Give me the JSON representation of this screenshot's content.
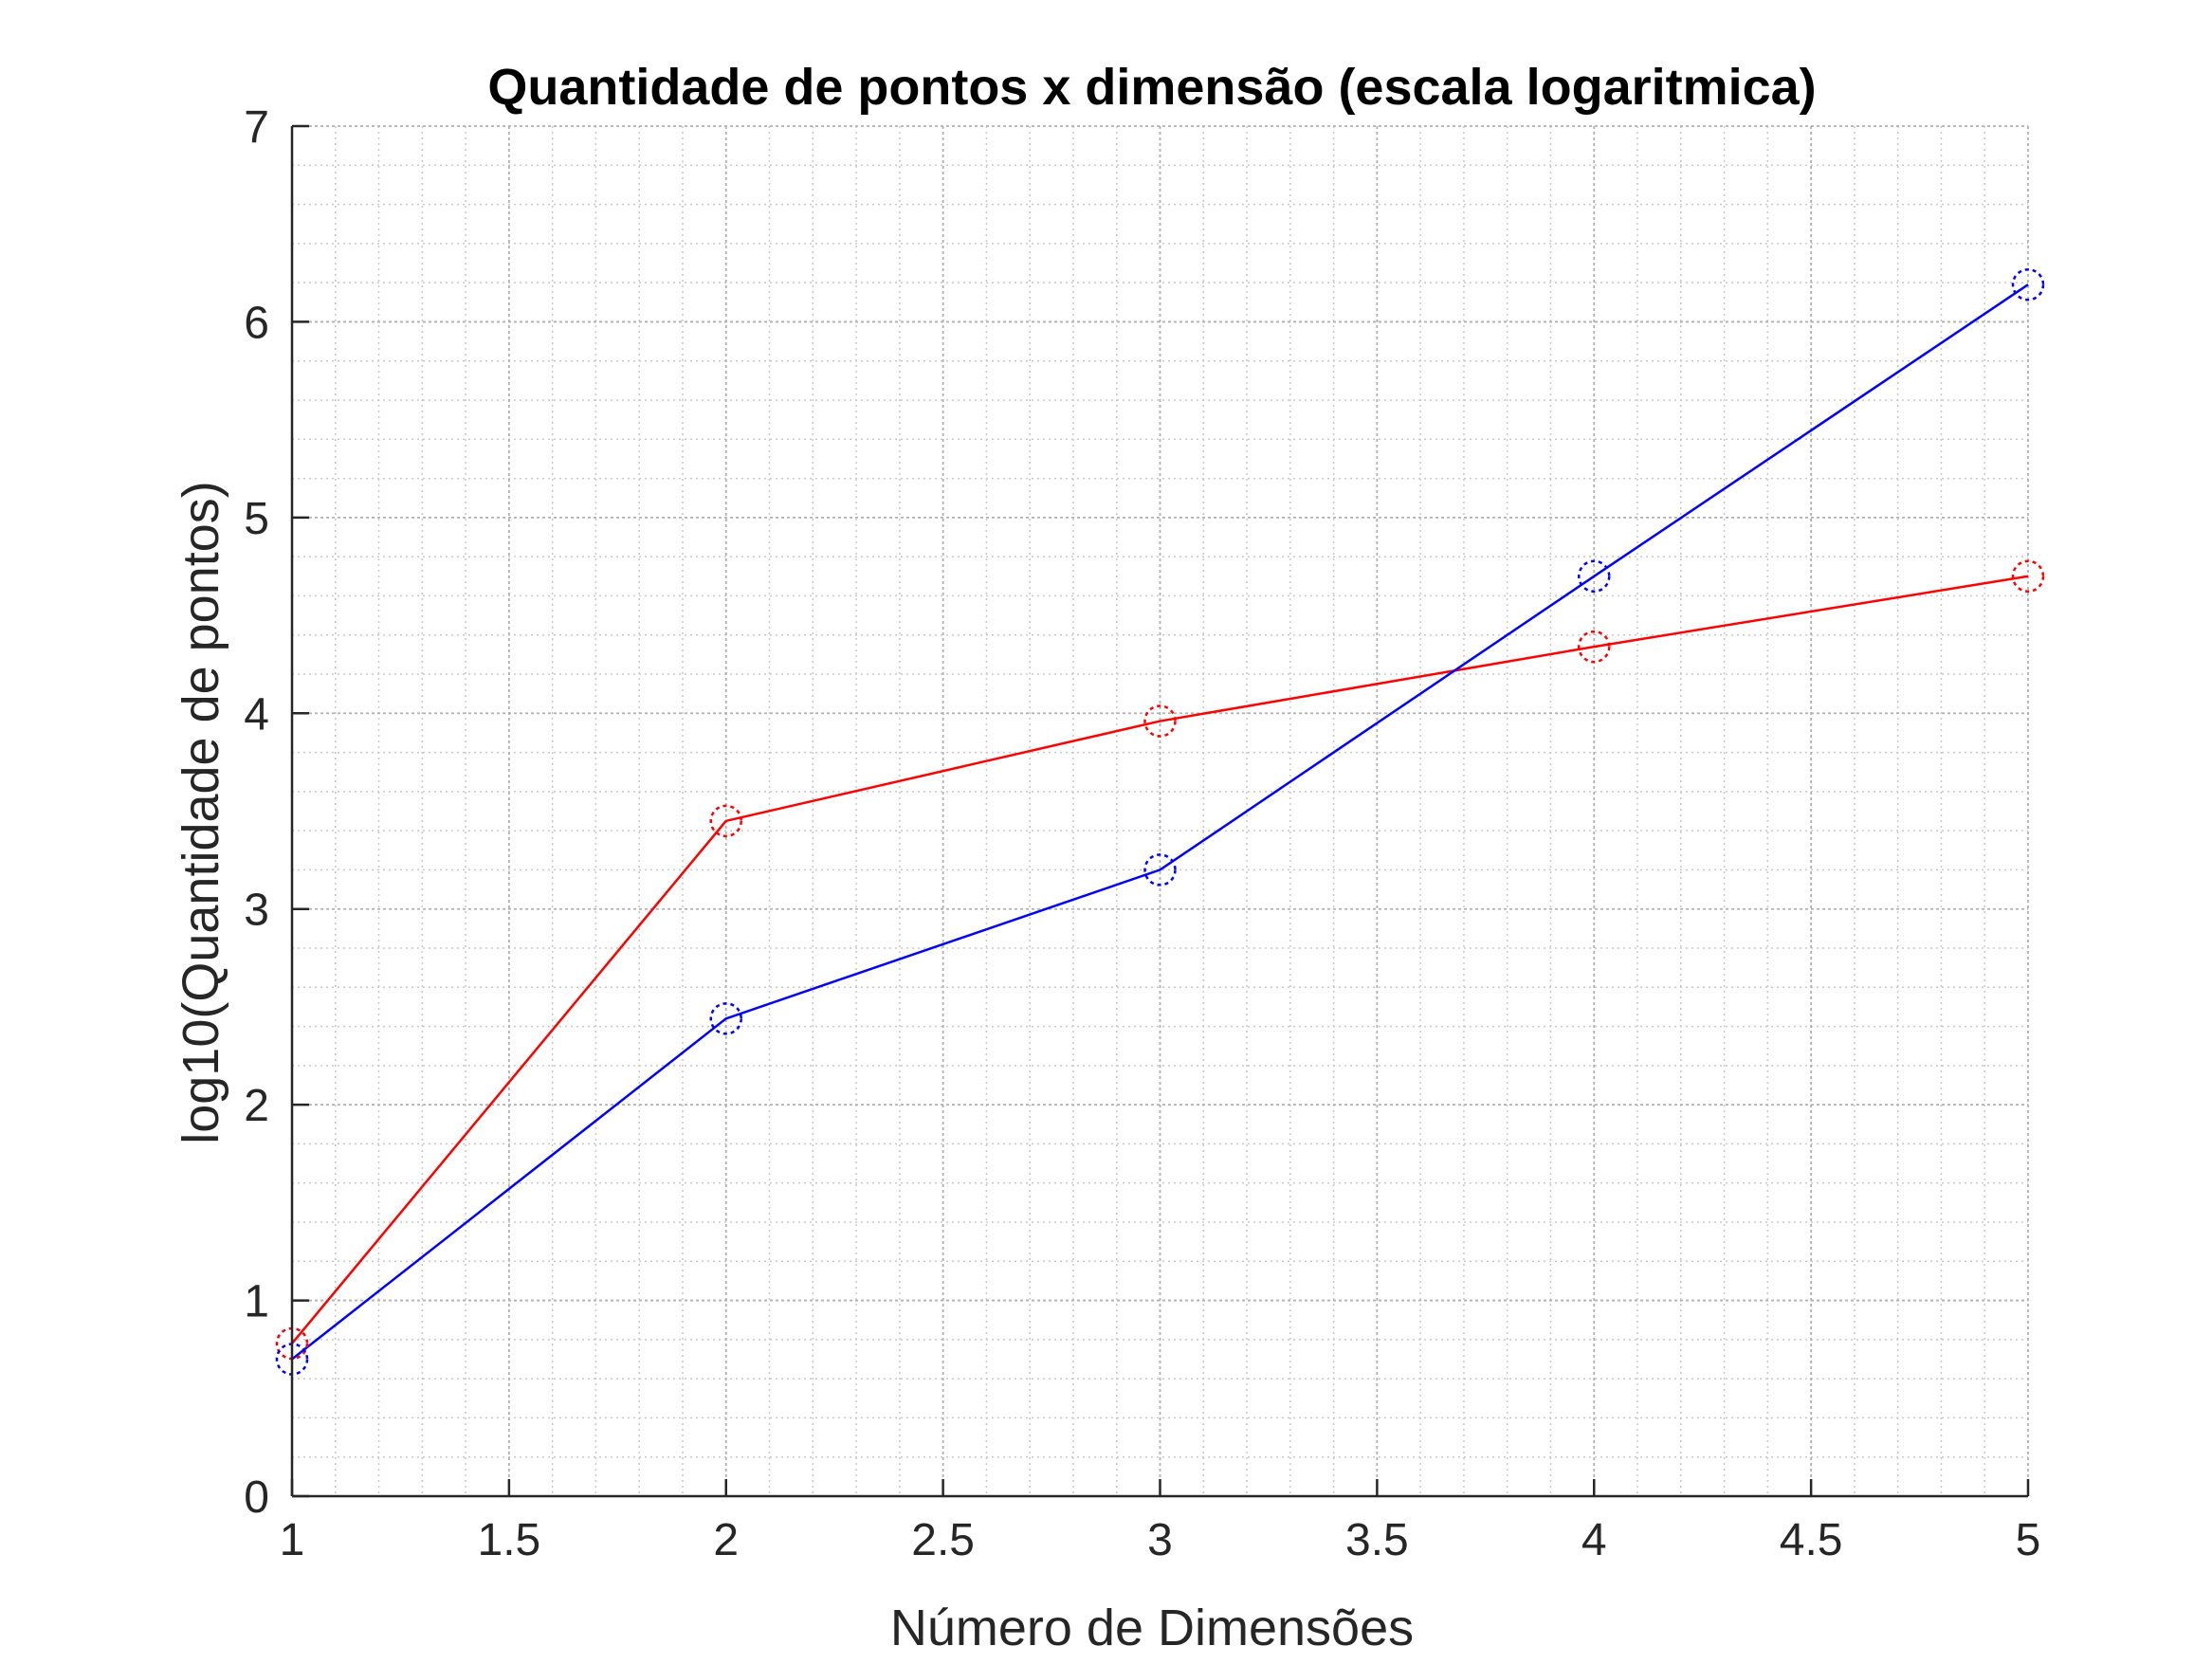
{
  "chart_data": {
    "type": "line",
    "title": "Quantidade de pontos x dimensão (escala logaritmica)",
    "xlabel": "Número de Dimensões",
    "ylabel": "log10(Quantidade de pontos)",
    "xlim": [
      1,
      5
    ],
    "ylim": [
      0,
      7
    ],
    "xticks": [
      1,
      1.5,
      2,
      2.5,
      3,
      3.5,
      4,
      4.5,
      5
    ],
    "xtick_labels": [
      "1",
      "1.5",
      "2",
      "2.5",
      "3",
      "3.5",
      "4",
      "4.5",
      "5"
    ],
    "yticks": [
      0,
      1,
      2,
      3,
      4,
      5,
      6,
      7
    ],
    "ytick_labels": [
      "0",
      "1",
      "2",
      "3",
      "4",
      "5",
      "6",
      "7"
    ],
    "grid": true,
    "minor_grid": true,
    "x": [
      1,
      2,
      3,
      4,
      5
    ],
    "series": [
      {
        "color": "#ff0000",
        "marker": "dotted-circle",
        "values": [
          0.78,
          3.45,
          3.96,
          4.34,
          4.7
        ]
      },
      {
        "color": "#0000ff",
        "marker": "dotted-circle",
        "values": [
          0.7,
          2.44,
          3.2,
          4.7,
          6.19
        ]
      }
    ]
  }
}
